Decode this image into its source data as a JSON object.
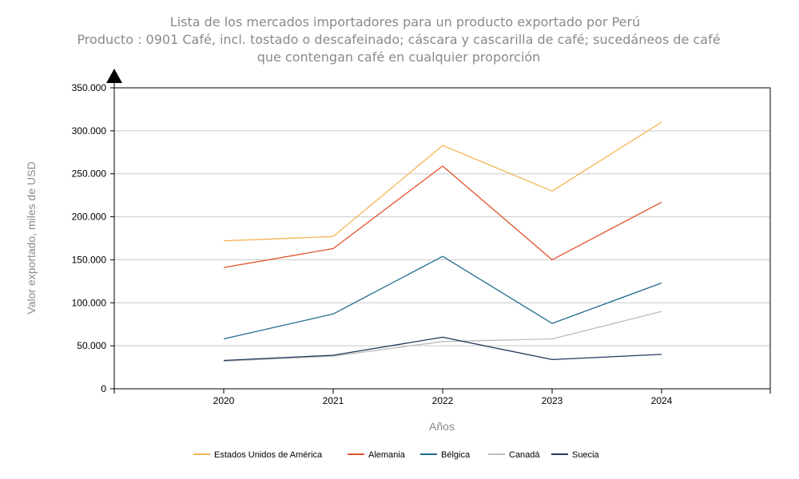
{
  "chart_data": {
    "type": "line",
    "title": [
      "Lista de los mercados importadores para un producto exportado por Perú",
      "Producto : 0901 Café, incl. tostado o descafeinado; cáscara y cascarilla de café; sucedáneos de café",
      "que contengan café en cualquier proporción"
    ],
    "xlabel": "Años",
    "ylabel": "Valor exportado, miles de USD",
    "x": [
      "2020",
      "2021",
      "2022",
      "2023",
      "2024"
    ],
    "ylim": [
      0,
      350000
    ],
    "yticks": [
      0,
      50000,
      100000,
      150000,
      200000,
      250000,
      300000,
      350000
    ],
    "ytick_labels": [
      "0",
      "50.000",
      "100.000",
      "150.000",
      "200.000",
      "250.000",
      "300.000",
      "350.000"
    ],
    "grid": true,
    "legend_position": "bottom",
    "series": [
      {
        "name": "Estados Unidos de América",
        "color": "#f5b555",
        "values": [
          172000,
          177000,
          283000,
          230000,
          310000
        ]
      },
      {
        "name": "Alemania",
        "color": "#e0532a",
        "values": [
          141000,
          163000,
          259000,
          150000,
          217000
        ]
      },
      {
        "name": "Bélgica",
        "color": "#1f6b8c",
        "values": [
          58000,
          87000,
          154000,
          76000,
          123000
        ]
      },
      {
        "name": "Canadá",
        "color": "#bdbdbd",
        "values": [
          32000,
          38000,
          55000,
          58000,
          90000
        ]
      },
      {
        "name": "Suecia",
        "color": "#22375e",
        "values": [
          33000,
          39000,
          60000,
          34000,
          40000
        ]
      }
    ]
  }
}
